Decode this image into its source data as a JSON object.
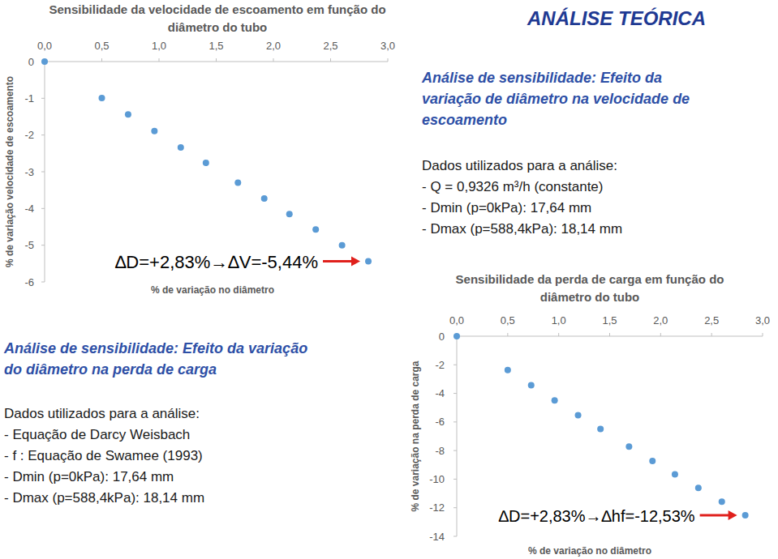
{
  "page": {
    "title": "ANÁLISE TEÓRICA",
    "sections": [
      {
        "heading_lines": [
          "Análise de sensibilidade: Efeito da",
          "variação de diâmetro na velocidade de",
          "escoamento"
        ],
        "intro": "Dados utilizados para a análise:",
        "items": [
          "- Q = 0,9326 m³/h (constante)",
          "- Dmin (p=0kPa): 17,64 mm",
          "- Dmax (p=588,4kPa): 18,14 mm"
        ]
      },
      {
        "heading_lines": [
          "Análise de sensibilidade: Efeito da variação",
          "do diâmetro na perda de carga"
        ],
        "intro": "Dados utilizados para a análise:",
        "items": [
          "- Equação de Darcy Weisbach",
          "- f : Equação de Swamee (1993)",
          "- Dmin (p=0kPa): 17,64 mm",
          "- Dmax (p=588,4kPa): 18,14 mm"
        ]
      }
    ]
  },
  "chart_data": [
    {
      "type": "scatter",
      "title": "Sensibilidade da velocidade de escoamento em função do diâmetro do tubo",
      "x_label": "% de variação no diâmetro",
      "y_label": "% de variação velocidade de escoamento",
      "annotation": "∆D=+2,83%→∆V=-5,44%",
      "xlim": [
        0,
        3
      ],
      "ylim": [
        -6,
        0
      ],
      "xticks": [
        {
          "value": 0,
          "label": "0,0"
        },
        {
          "value": 0.5,
          "label": "0,5"
        },
        {
          "value": 1,
          "label": "1,0"
        },
        {
          "value": 1.5,
          "label": "1,5"
        },
        {
          "value": 2,
          "label": "2,0"
        },
        {
          "value": 2.5,
          "label": "2,5"
        },
        {
          "value": 3,
          "label": "3,0"
        }
      ],
      "yticks": [
        0,
        -1,
        -2,
        -3,
        -4,
        -5,
        -6
      ],
      "x": [
        0,
        0.5,
        0.73,
        0.96,
        1.19,
        1.41,
        1.69,
        1.92,
        2.14,
        2.37,
        2.6,
        2.83
      ],
      "values": [
        0,
        -0.99,
        -1.44,
        -1.89,
        -2.34,
        -2.76,
        -3.3,
        -3.73,
        -4.15,
        -4.57,
        -5.0,
        -5.44
      ],
      "color": "#5b9bd5",
      "marker": "circle"
    },
    {
      "type": "scatter",
      "title": "Sensibilidade da perda de carga em função do diâmetro do tubo",
      "x_label": "% de variação no diâmetro",
      "y_label": "% de variação na perda de carga",
      "annotation": "∆D=+2,83%→∆hf=-12,53%",
      "xlim": [
        0,
        3
      ],
      "ylim": [
        -14,
        0
      ],
      "xticks": [
        {
          "value": 0,
          "label": "0,0"
        },
        {
          "value": 0.5,
          "label": "0,5"
        },
        {
          "value": 1,
          "label": "1,0"
        },
        {
          "value": 1.5,
          "label": "1,5"
        },
        {
          "value": 2,
          "label": "2,0"
        },
        {
          "value": 2.5,
          "label": "2,5"
        },
        {
          "value": 3,
          "label": "3,0"
        }
      ],
      "yticks": [
        0,
        -2,
        -4,
        -6,
        -8,
        -10,
        -12,
        -14
      ],
      "x": [
        0,
        0.5,
        0.73,
        0.96,
        1.19,
        1.41,
        1.69,
        1.92,
        2.14,
        2.37,
        2.6,
        2.83
      ],
      "values": [
        0,
        -2.37,
        -3.43,
        -4.49,
        -5.52,
        -6.49,
        -7.72,
        -8.73,
        -9.66,
        -10.61,
        -11.58,
        -12.53
      ],
      "color": "#5b9bd5",
      "marker": "circle"
    }
  ]
}
